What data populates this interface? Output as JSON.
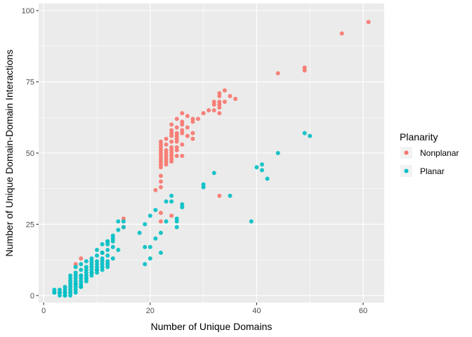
{
  "chart_data": {
    "type": "scatter",
    "title": "",
    "xlabel": "Number of Unique Domains",
    "ylabel": "Number of Unique Domain-Domain Interactions",
    "xlim": [
      -0.95,
      63.95
    ],
    "ylim": [
      -2.5,
      102.5
    ],
    "x_ticks": [
      0,
      20,
      40,
      60
    ],
    "y_ticks": [
      0,
      25,
      50,
      75,
      100
    ],
    "grid": true,
    "legend": {
      "title": "Planarity",
      "placement": "right"
    },
    "series": [
      {
        "name": "Nonplanar",
        "color": "#F8766D",
        "x": [
          61,
          56,
          49,
          49,
          44,
          34,
          33,
          33,
          35,
          36,
          32,
          33,
          34,
          32,
          33,
          33,
          31,
          32,
          30,
          33,
          28,
          29,
          26,
          27,
          28,
          25,
          26,
          26,
          24,
          25,
          24,
          24,
          26,
          27,
          25,
          26,
          28,
          24,
          25,
          23,
          22,
          22,
          25,
          27,
          28,
          22,
          23,
          24,
          25,
          26,
          24,
          25,
          22,
          23,
          24,
          25,
          22,
          23,
          24,
          22,
          23,
          24,
          25,
          26,
          22,
          23,
          24,
          22,
          23,
          24,
          22,
          23,
          22,
          22,
          22,
          21,
          22,
          33,
          24,
          22,
          22,
          15,
          15,
          7,
          6,
          10
        ],
        "y": [
          96,
          92,
          80,
          79,
          78,
          72,
          71,
          70,
          70,
          69,
          68,
          68,
          68,
          67,
          67,
          66,
          65,
          65,
          64,
          64,
          62,
          62,
          64,
          63,
          61,
          62,
          61,
          60,
          60,
          59,
          58,
          57,
          58,
          59,
          57,
          57,
          57,
          56,
          56,
          55,
          54,
          53,
          55,
          56,
          55,
          52,
          53,
          54,
          54,
          53,
          52,
          52,
          51,
          51,
          51,
          51,
          50,
          50,
          50,
          49,
          49,
          49,
          49,
          49,
          48,
          48,
          48,
          47,
          47,
          47,
          46,
          46,
          45,
          42,
          40,
          37,
          38,
          35,
          28,
          29,
          26,
          27,
          24,
          13,
          11,
          9
        ]
      },
      {
        "name": "Planar",
        "color": "#00BFC4",
        "x": [
          49,
          50,
          44,
          40,
          41,
          41,
          42,
          32,
          35,
          30,
          30,
          39,
          24,
          24,
          25,
          23,
          21,
          20,
          26,
          26,
          25,
          23,
          25,
          22,
          21,
          20,
          19,
          18,
          15,
          14,
          14,
          13,
          15,
          19,
          19,
          20,
          22,
          13,
          12,
          11,
          12,
          10,
          11,
          12,
          13,
          11,
          12,
          10,
          11,
          12,
          9,
          10,
          11,
          12,
          9,
          10,
          11,
          9,
          10,
          11,
          8,
          9,
          10,
          8,
          9,
          10,
          7,
          8,
          9,
          7,
          8,
          9,
          6,
          7,
          8,
          6,
          7,
          8,
          5,
          6,
          7,
          8,
          5,
          6,
          7,
          5,
          6,
          7,
          4,
          5,
          6,
          7,
          4,
          5,
          6,
          4,
          5,
          6,
          4,
          5,
          3,
          4,
          3,
          4,
          2,
          3,
          2,
          3,
          2,
          8,
          9,
          10,
          6,
          7,
          5,
          6,
          13,
          12,
          14,
          11,
          12,
          13
        ],
        "y": [
          57,
          56,
          50,
          45,
          46,
          44,
          41,
          43,
          35,
          39,
          38,
          26,
          35,
          33,
          27,
          33,
          30,
          28,
          32,
          31,
          26,
          26,
          24,
          22,
          20,
          17,
          25,
          22,
          26,
          26,
          23,
          21,
          24,
          17,
          11,
          13,
          15,
          19,
          19,
          18,
          16,
          16,
          15,
          14,
          13,
          13,
          12,
          12,
          12,
          11,
          12,
          11,
          11,
          10,
          11,
          10,
          10,
          10,
          9,
          9,
          10,
          9,
          9,
          9,
          8,
          8,
          9,
          8,
          8,
          7,
          7,
          7,
          7,
          7,
          6,
          6,
          6,
          6,
          6,
          5,
          5,
          5,
          5,
          4,
          4,
          4,
          4,
          3,
          3,
          3,
          3,
          3,
          2,
          2,
          2,
          1,
          1,
          1,
          0,
          0,
          2,
          1,
          1,
          0,
          1,
          0,
          1,
          1,
          2,
          12,
          13,
          14,
          10,
          11,
          7,
          8,
          17,
          18,
          16,
          15,
          19,
          20
        ]
      }
    ]
  }
}
